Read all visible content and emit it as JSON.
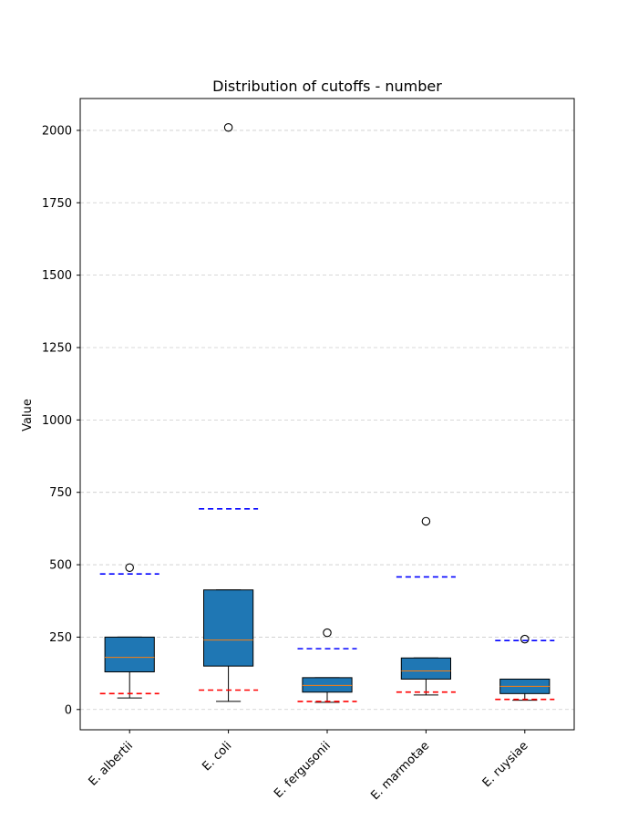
{
  "chart_data": {
    "type": "box",
    "title": "Distribution of cutoffs - number",
    "xlabel": "",
    "ylabel": "Value",
    "ylim": [
      -70,
      2110
    ],
    "yticks": [
      0,
      250,
      500,
      750,
      1000,
      1250,
      1500,
      1750,
      2000
    ],
    "grid": true,
    "categories": [
      "E. albertii",
      "E. coli",
      "E. fergusonii",
      "E. marmotae",
      "E. ruysiae"
    ],
    "boxes": [
      {
        "whislo": 40,
        "q1": 130,
        "med": 180,
        "q3": 250,
        "whishi": 250,
        "fliers": [
          490
        ],
        "upper_cutoff": 468,
        "lower_cutoff": 55
      },
      {
        "whislo": 28,
        "q1": 150,
        "med": 240,
        "q3": 413,
        "whishi": 413,
        "fliers": [
          2010
        ],
        "upper_cutoff": 693,
        "lower_cutoff": 67
      },
      {
        "whislo": 25,
        "q1": 60,
        "med": 83,
        "q3": 110,
        "whishi": 110,
        "fliers": [
          265
        ],
        "upper_cutoff": 210,
        "lower_cutoff": 28
      },
      {
        "whislo": 50,
        "q1": 105,
        "med": 133,
        "q3": 178,
        "whishi": 178,
        "fliers": [
          650
        ],
        "upper_cutoff": 458,
        "lower_cutoff": 60
      },
      {
        "whislo": 32,
        "q1": 55,
        "med": 80,
        "q3": 105,
        "whishi": 105,
        "fliers": [
          243
        ],
        "upper_cutoff": 238,
        "lower_cutoff": 35
      }
    ],
    "colors": {
      "box_fill": "#1f77b4",
      "median": "#ff7f0e",
      "upper_cutoff": "#0000ff",
      "lower_cutoff": "#ff0000",
      "grid": "#cccccc"
    }
  }
}
